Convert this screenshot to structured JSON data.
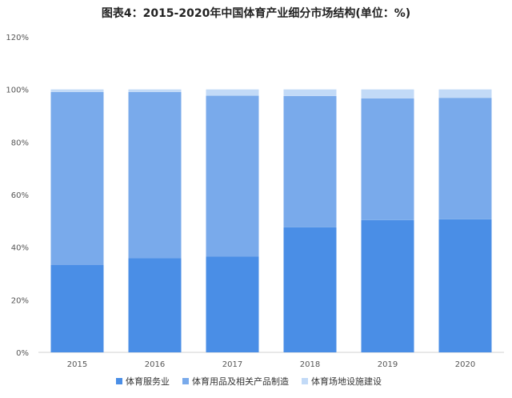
{
  "chart_data": {
    "type": "bar",
    "stacked": true,
    "title": "图表4：2015-2020年中国体育产业细分市场结构(单位：%)",
    "categories": [
      "2015",
      "2016",
      "2017",
      "2018",
      "2019",
      "2020"
    ],
    "series": [
      {
        "name": "体育服务业",
        "values": [
          33.2,
          35.8,
          36.4,
          47.6,
          50.3,
          50.6
        ],
        "color": "#4a8ee6"
      },
      {
        "name": "体育用品及相关产品制造",
        "values": [
          65.8,
          63.2,
          61.2,
          49.9,
          46.3,
          46.2
        ],
        "color": "#79aaeb"
      },
      {
        "name": "体育场地设施建设",
        "values": [
          1.0,
          1.0,
          2.4,
          2.5,
          3.4,
          3.2
        ],
        "color": "#c2daf7"
      }
    ],
    "ylim": [
      0,
      120
    ],
    "yticks": [
      "0%",
      "20%",
      "40%",
      "60%",
      "80%",
      "100%",
      "120%"
    ],
    "grid": false,
    "legend": "bottom"
  }
}
